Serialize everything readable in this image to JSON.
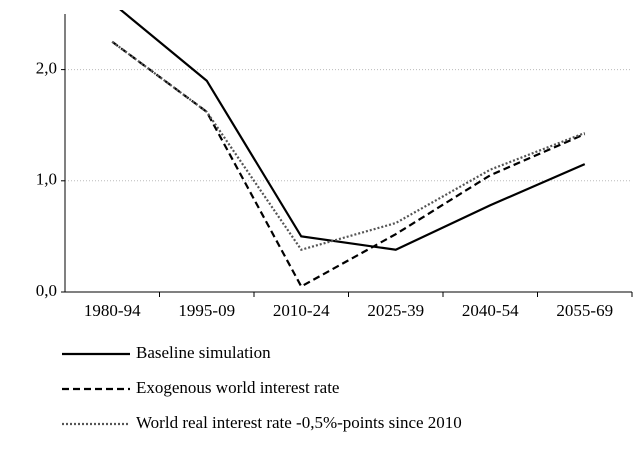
{
  "chart_data": {
    "type": "line",
    "categories": [
      "1980-94",
      "1995-09",
      "2010-24",
      "2025-39",
      "2040-54",
      "2055-69"
    ],
    "series": [
      {
        "name": "Baseline simulation",
        "color": "#000000",
        "dash": "solid",
        "values": [
          2.6,
          1.9,
          0.5,
          0.38,
          0.78,
          1.15
        ]
      },
      {
        "name": "Exogenous world interest rate",
        "color": "#000000",
        "dash": "dashed",
        "values": [
          2.25,
          1.62,
          0.05,
          0.52,
          1.05,
          1.42
        ]
      },
      {
        "name": "World real interest rate -0,5%-points since 2010",
        "color": "#555555",
        "dash": "dotted",
        "values": [
          2.25,
          1.62,
          0.38,
          0.62,
          1.1,
          1.43
        ]
      }
    ],
    "ylim": [
      0,
      2.5
    ],
    "yticks": [
      {
        "value": 0,
        "label": "0,0"
      },
      {
        "value": 1,
        "label": "1,0"
      },
      {
        "value": 2,
        "label": "2,0"
      }
    ],
    "grid": true,
    "legend": "bottom"
  }
}
